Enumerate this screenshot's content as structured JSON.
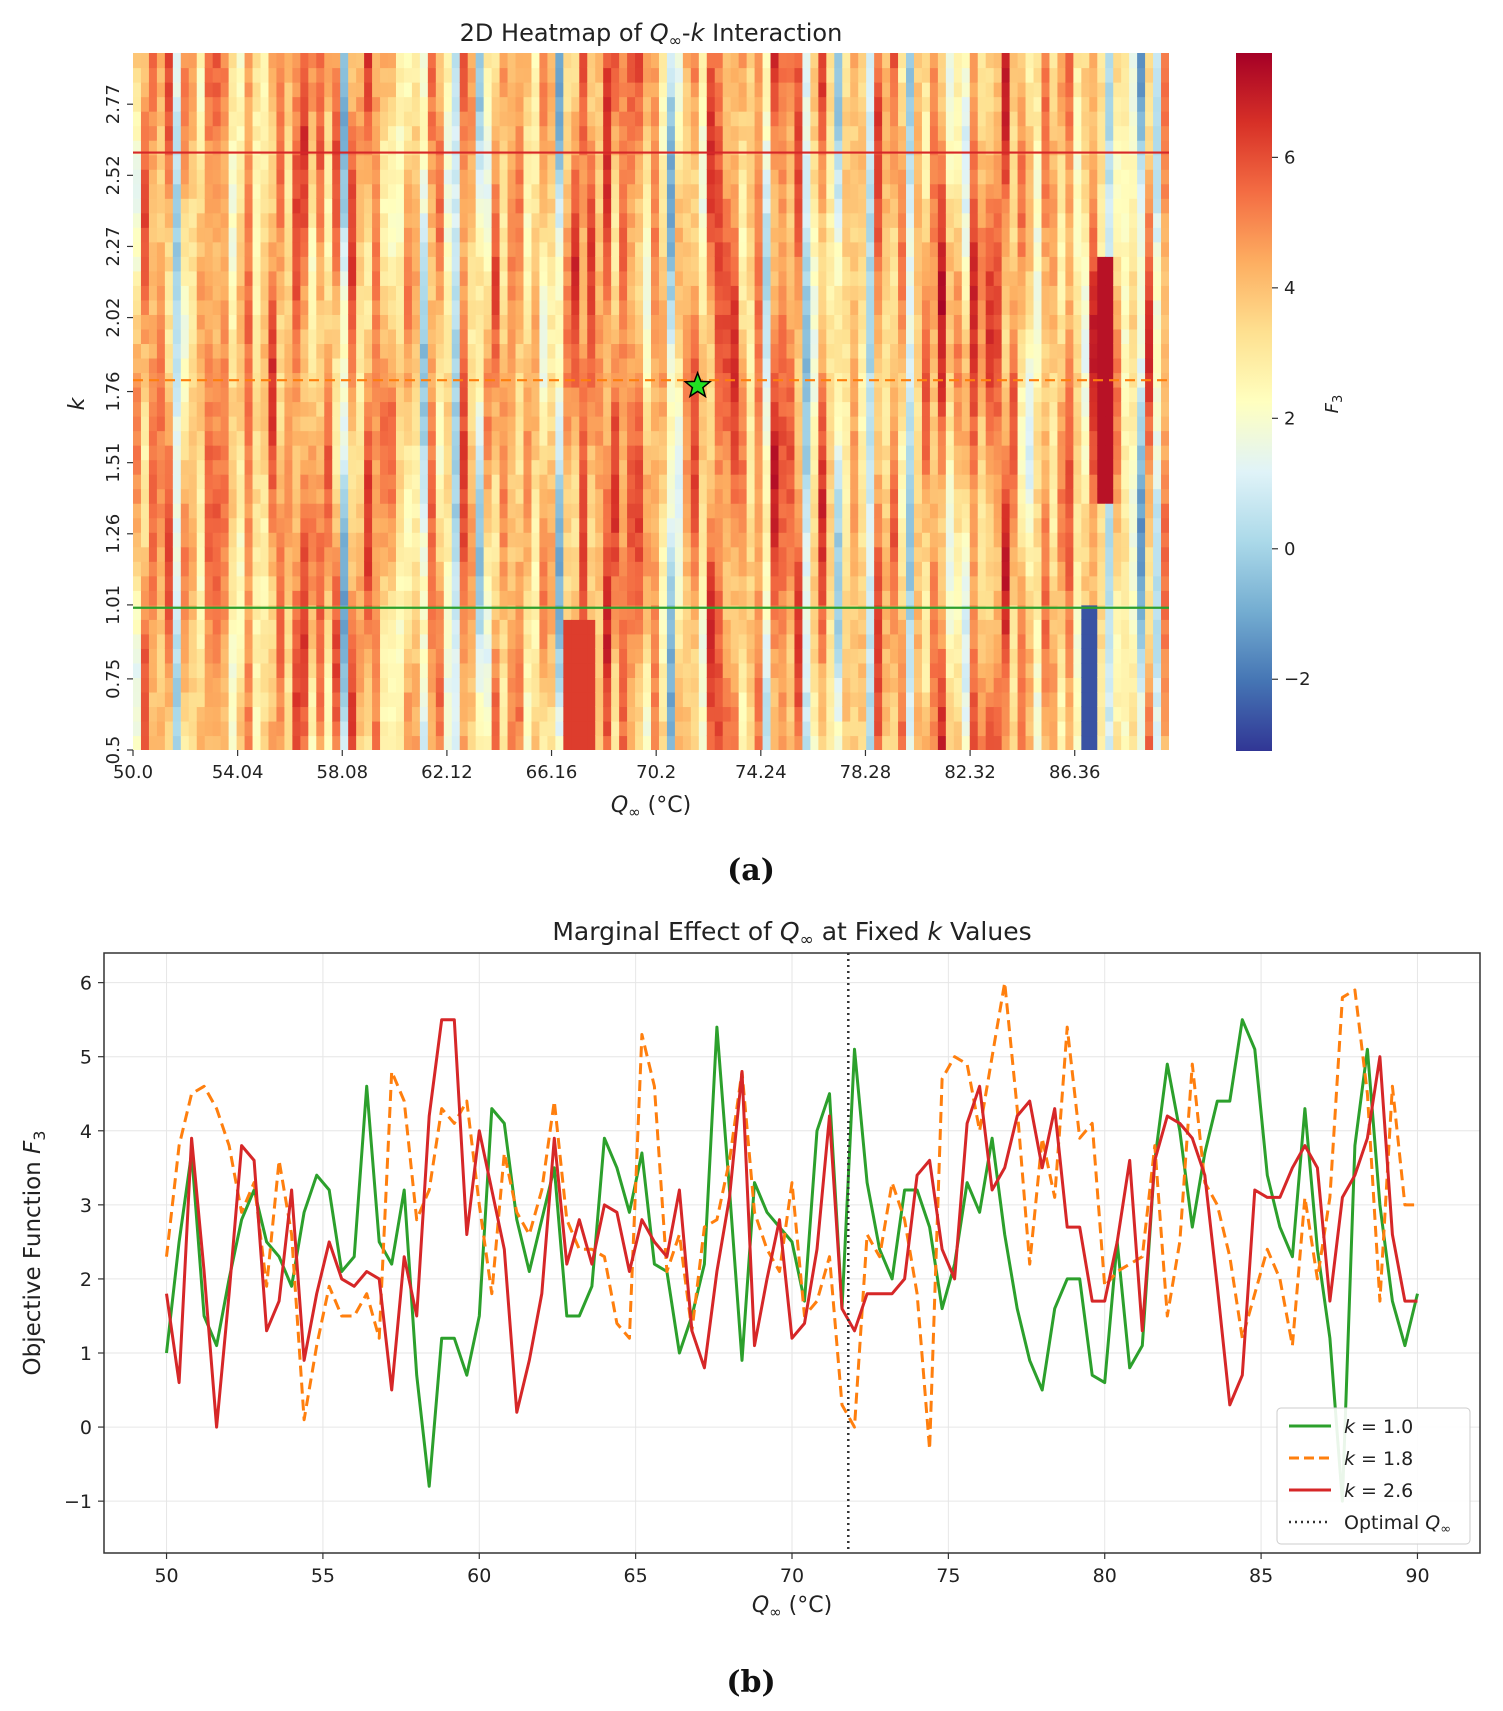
{
  "chart_data": [
    {
      "type": "heatmap",
      "title_parts": [
        "2D Heatmap of ",
        "Q",
        "∞",
        "-",
        "k",
        " Interaction"
      ],
      "xlabel_parts": [
        "Q",
        "∞",
        " (°C)"
      ],
      "ylabel": "k",
      "x_range": [
        50.0,
        90.0
      ],
      "y_range": [
        0.5,
        2.95
      ],
      "x_ticks": [
        "50.0",
        "54.04",
        "58.08",
        "62.12",
        "66.16",
        "70.2",
        "74.24",
        "78.28",
        "82.32",
        "86.36"
      ],
      "y_ticks": [
        "0.5",
        "0.75",
        "1.01",
        "1.26",
        "1.51",
        "1.76",
        "2.02",
        "2.27",
        "2.52",
        "2.77"
      ],
      "colorbar": {
        "label_parts": [
          "F",
          "3"
        ],
        "range": [
          -3.1,
          7.6
        ],
        "ticks": [
          "−2",
          "0",
          "2",
          "4",
          "6"
        ],
        "tick_values": [
          -2,
          0,
          2,
          4,
          6
        ],
        "colormap": "RdYlBu_r"
      },
      "hlines": [
        {
          "k": 1.0,
          "color": "#2ca02c",
          "style": "solid"
        },
        {
          "k": 1.8,
          "color": "#ff7f0e",
          "style": "dashed"
        },
        {
          "k": 2.6,
          "color": "#d62728",
          "style": "solid"
        }
      ],
      "optimum": {
        "x": 71.8,
        "y": 1.78,
        "marker": "star",
        "color": "#22e022"
      },
      "caption": "(a)"
    },
    {
      "type": "line",
      "title_parts": [
        "Marginal Effect of ",
        "Q",
        "∞",
        " at Fixed ",
        "k",
        " Values"
      ],
      "xlabel_parts": [
        "Q",
        "∞",
        " (°C)"
      ],
      "ylabel_parts": [
        "Objective Function ",
        "F",
        "3"
      ],
      "xlim": [
        48.0,
        92.0
      ],
      "ylim": [
        -1.7,
        6.4
      ],
      "x_ticks": [
        "50",
        "55",
        "60",
        "65",
        "70",
        "75",
        "80",
        "85",
        "90"
      ],
      "x_tick_values": [
        50,
        55,
        60,
        65,
        70,
        75,
        80,
        85,
        90
      ],
      "y_ticks": [
        "−1",
        "0",
        "1",
        "2",
        "3",
        "4",
        "5",
        "6"
      ],
      "y_tick_values": [
        -1,
        0,
        1,
        2,
        3,
        4,
        5,
        6
      ],
      "vline": {
        "x": 71.8,
        "style": "dotted",
        "color": "#333333"
      },
      "x": [
        50.0,
        50.4,
        50.8,
        51.2,
        51.6,
        52.0,
        52.4,
        52.8,
        53.2,
        53.6,
        54.0,
        54.4,
        54.8,
        55.2,
        55.6,
        56.0,
        56.4,
        56.8,
        57.2,
        57.6,
        58.0,
        58.4,
        58.8,
        59.2,
        59.6,
        60.0,
        60.4,
        60.8,
        61.2,
        61.6,
        62.0,
        62.4,
        62.8,
        63.2,
        63.6,
        64.0,
        64.4,
        64.8,
        65.2,
        65.6,
        66.0,
        66.4,
        66.8,
        67.2,
        67.6,
        68.0,
        68.4,
        68.8,
        69.2,
        69.6,
        70.0,
        70.4,
        70.8,
        71.2,
        71.6,
        72.0,
        72.4,
        72.8,
        73.2,
        73.6,
        74.0,
        74.4,
        74.8,
        75.2,
        75.6,
        76.0,
        76.4,
        76.8,
        77.2,
        77.6,
        78.0,
        78.4,
        78.8,
        79.2,
        79.6,
        80.0,
        80.4,
        80.8,
        81.2,
        81.6,
        82.0,
        82.4,
        82.8,
        83.2,
        83.6,
        84.0,
        84.4,
        84.8,
        85.2,
        85.6,
        86.0,
        86.4,
        86.8,
        87.2,
        87.6,
        88.0,
        88.4,
        88.8,
        89.2,
        89.6,
        90.0
      ],
      "series": [
        {
          "name_parts": [
            "k",
            " = 1.0"
          ],
          "color": "#2ca02c",
          "dash": "solid",
          "values": [
            1.0,
            2.5,
            3.7,
            1.5,
            1.1,
            2.0,
            2.8,
            3.2,
            2.5,
            2.3,
            1.9,
            2.9,
            3.4,
            3.2,
            2.1,
            2.3,
            4.6,
            2.5,
            2.2,
            3.2,
            0.7,
            -0.8,
            1.2,
            1.2,
            0.7,
            1.5,
            4.3,
            4.1,
            2.8,
            2.1,
            2.8,
            3.5,
            1.5,
            1.5,
            1.9,
            3.9,
            3.5,
            2.9,
            3.7,
            2.2,
            2.1,
            1.0,
            1.5,
            2.2,
            5.4,
            3.2,
            0.9,
            3.3,
            2.9,
            2.7,
            2.5,
            1.7,
            4.0,
            4.5,
            1.6,
            5.1,
            3.3,
            2.4,
            2.0,
            3.2,
            3.2,
            2.7,
            1.6,
            2.2,
            3.3,
            2.9,
            3.9,
            2.6,
            1.6,
            0.9,
            0.5,
            1.6,
            2.0,
            2.0,
            0.7,
            0.6,
            2.5,
            0.8,
            1.1,
            3.6,
            4.9,
            4.0,
            2.7,
            3.7,
            4.4,
            4.4,
            5.5,
            5.1,
            3.4,
            2.7,
            2.3,
            4.3,
            2.4,
            1.2,
            -1.0,
            3.8,
            5.1,
            3.0,
            1.7,
            1.1,
            1.8
          ]
        },
        {
          "name_parts": [
            "k",
            " = 1.8"
          ],
          "color": "#ff7f0e",
          "dash": "dashed",
          "values": [
            2.3,
            3.8,
            4.5,
            4.6,
            4.3,
            3.8,
            2.9,
            3.3,
            1.9,
            3.6,
            2.6,
            0.1,
            1.1,
            1.9,
            1.5,
            1.5,
            1.8,
            1.2,
            4.8,
            4.4,
            2.8,
            3.2,
            4.3,
            4.1,
            4.4,
            3.0,
            1.8,
            3.7,
            2.9,
            2.6,
            3.2,
            4.4,
            2.8,
            2.4,
            2.4,
            2.3,
            1.4,
            1.2,
            5.3,
            4.6,
            2.1,
            2.6,
            1.3,
            2.7,
            2.8,
            3.6,
            4.8,
            2.9,
            2.4,
            2.1,
            3.3,
            1.5,
            1.7,
            2.3,
            0.3,
            0.0,
            2.6,
            2.3,
            3.3,
            2.8,
            1.8,
            -0.3,
            4.7,
            5.0,
            4.9,
            4.0,
            5.0,
            6.0,
            4.3,
            2.2,
            3.9,
            3.1,
            5.4,
            3.9,
            4.1,
            1.9,
            2.1,
            2.2,
            2.3,
            3.8,
            1.5,
            2.5,
            4.9,
            3.3,
            3.0,
            2.3,
            1.2,
            1.8,
            2.4,
            2.0,
            1.1,
            3.1,
            2.0,
            3.1,
            5.8,
            5.9,
            4.5,
            1.7,
            4.6,
            3.0,
            3.0
          ]
        },
        {
          "name_parts": [
            "k",
            " = 2.6"
          ],
          "color": "#d62728",
          "dash": "solid",
          "values": [
            1.8,
            0.6,
            3.9,
            2.1,
            0.0,
            1.8,
            3.8,
            3.6,
            1.3,
            1.7,
            3.2,
            0.9,
            1.8,
            2.5,
            2.0,
            1.9,
            2.1,
            2.0,
            0.5,
            2.3,
            1.5,
            4.2,
            5.5,
            5.5,
            2.6,
            4.0,
            3.2,
            2.4,
            0.2,
            0.9,
            1.8,
            3.9,
            2.2,
            2.8,
            2.2,
            3.0,
            2.9,
            2.1,
            2.8,
            2.5,
            2.3,
            3.2,
            1.3,
            0.8,
            2.1,
            3.1,
            4.8,
            1.1,
            2.0,
            2.8,
            1.2,
            1.4,
            2.4,
            4.2,
            1.6,
            1.3,
            1.8,
            1.8,
            1.8,
            2.0,
            3.4,
            3.6,
            2.4,
            2.0,
            4.1,
            4.6,
            3.2,
            3.5,
            4.2,
            4.4,
            3.5,
            4.3,
            2.7,
            2.7,
            1.7,
            1.7,
            2.5,
            3.6,
            1.3,
            3.6,
            4.2,
            4.1,
            3.9,
            3.4,
            1.9,
            0.3,
            0.7,
            3.2,
            3.1,
            3.1,
            3.5,
            3.8,
            3.5,
            1.7,
            3.1,
            3.4,
            3.9,
            5.0,
            2.6,
            1.7,
            1.7
          ]
        }
      ],
      "legend_extra_parts": [
        "Optimal ",
        "Q",
        "∞"
      ],
      "legend_position": "lower-right",
      "caption": "(b)"
    }
  ]
}
